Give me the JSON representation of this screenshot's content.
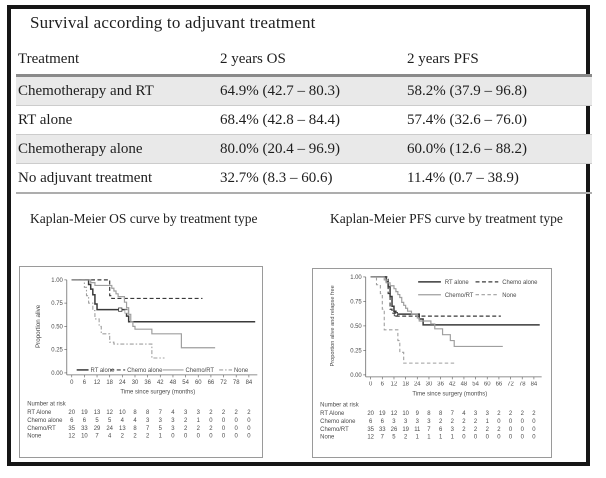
{
  "table": {
    "title": "Survival according to adjuvant treatment",
    "columns": [
      "Treatment",
      "2 years OS",
      "2 years PFS"
    ],
    "rows": [
      {
        "cells": [
          "Chemotherapy and RT",
          "64.9% (42.7 – 80.3)",
          "58.2% (37.9 – 96.8)"
        ],
        "shaded": true
      },
      {
        "cells": [
          "RT alone",
          "68.4% (42.8 – 84.4)",
          "57.4% (32.6 – 76.0)"
        ],
        "shaded": false
      },
      {
        "cells": [
          "Chemotherapy alone",
          "80.0% (20.4 – 96.9)",
          "60.0% (12.6 – 88.2)"
        ],
        "shaded": true
      },
      {
        "cells": [
          "No adjuvant treatment",
          "32.7% (8.3 – 60.6)",
          "11.4% (0.7 – 38.9)"
        ],
        "shaded": false
      }
    ]
  },
  "figures": {
    "os_title": "Kaplan-Meier OS curve by treatment type",
    "pfs_title": "Kaplan-Meier PFS curve by treatment type"
  },
  "colors": {
    "curve_black": "#3a3a3a",
    "curve_gray": "#9f9f9f",
    "axis": "#6b6b6b",
    "chart_text": "#4a4a4a"
  },
  "chart_data": [
    {
      "type": "line",
      "subtype": "kaplan-meier-step",
      "title": "Kaplan-Meier OS curve by treatment type",
      "xlabel": "Time since surgery (months)",
      "ylabel": "Proportion alive",
      "xlim": [
        0,
        88
      ],
      "ylim": [
        0,
        1.0
      ],
      "xticks": [
        0,
        6,
        12,
        18,
        24,
        30,
        36,
        42,
        48,
        54,
        60,
        66,
        72,
        78,
        84
      ],
      "yticks": [
        "1.00",
        "0.75",
        "0.50",
        "0.25",
        "0.00"
      ],
      "grid": false,
      "legend_position": "bottom-inside",
      "series": [
        {
          "name": "RT alone",
          "color": "#3a3a3a",
          "dash": null,
          "width": 1.5,
          "steps": [
            [
              0,
              1
            ],
            [
              7,
              1
            ],
            [
              8,
              0.95
            ],
            [
              9,
              0.9
            ],
            [
              10,
              0.84
            ],
            [
              11,
              0.74
            ],
            [
              12,
              0.68
            ],
            [
              25,
              0.68
            ],
            [
              26,
              0.61
            ],
            [
              27,
              0.55
            ],
            [
              87,
              0.55
            ]
          ],
          "censors": [
            [
              23,
              0.68
            ]
          ]
        },
        {
          "name": "Chemo alone",
          "color": "#3a3a3a",
          "dash": "4,2.5",
          "width": 1.2,
          "steps": [
            [
              0,
              1
            ],
            [
              17,
              1
            ],
            [
              18,
              0.83
            ],
            [
              19,
              0.8
            ],
            [
              62,
              0.8
            ]
          ],
          "censors": []
        },
        {
          "name": "Chemo/RT",
          "color": "#9f9f9f",
          "dash": null,
          "width": 1.2,
          "steps": [
            [
              0,
              1
            ],
            [
              8,
              1
            ],
            [
              9,
              0.97
            ],
            [
              11,
              0.94
            ],
            [
              18,
              0.94
            ],
            [
              19,
              0.91
            ],
            [
              20,
              0.88
            ],
            [
              21,
              0.85
            ],
            [
              22,
              0.82
            ],
            [
              24,
              0.82
            ],
            [
              25,
              0.76
            ],
            [
              26,
              0.7
            ],
            [
              27,
              0.63
            ],
            [
              28,
              0.55
            ],
            [
              29,
              0.5
            ],
            [
              30,
              0.47
            ],
            [
              37,
              0.47
            ],
            [
              38,
              0.42
            ],
            [
              51,
              0.42
            ],
            [
              52,
              0.27
            ],
            [
              68,
              0.27
            ]
          ],
          "censors": [
            [
              26,
              0.66
            ]
          ]
        },
        {
          "name": "None",
          "color": "#9f9f9f",
          "dash": "4,2,1.5,2",
          "width": 1.1,
          "steps": [
            [
              0,
              1
            ],
            [
              5,
              1
            ],
            [
              6,
              0.92
            ],
            [
              7,
              0.83
            ],
            [
              8,
              0.75
            ],
            [
              10,
              0.67
            ],
            [
              11,
              0.58
            ],
            [
              13,
              0.5
            ],
            [
              14,
              0.42
            ],
            [
              18,
              0.33
            ],
            [
              20,
              0.31
            ],
            [
              37,
              0.31
            ],
            [
              38,
              0.16
            ],
            [
              44,
              0.16
            ]
          ],
          "censors": []
        }
      ],
      "number_at_risk": {
        "label": "Number at risk",
        "rows": [
          {
            "name": "RT Alone",
            "values": [
              20,
              19,
              13,
              12,
              10,
              8,
              8,
              7,
              4,
              3,
              3,
              2,
              2,
              2,
              2
            ]
          },
          {
            "name": "Chemo alone",
            "values": [
              6,
              6,
              5,
              5,
              4,
              4,
              3,
              3,
              3,
              2,
              1,
              0,
              0,
              0,
              0
            ]
          },
          {
            "name": "Chemo/RT",
            "values": [
              35,
              33,
              29,
              24,
              13,
              8,
              7,
              5,
              3,
              2,
              2,
              2,
              0,
              0,
              0
            ]
          },
          {
            "name": "None",
            "values": [
              12,
              10,
              7,
              4,
              2,
              2,
              2,
              1,
              0,
              0,
              0,
              0,
              0,
              0,
              0
            ]
          }
        ]
      }
    },
    {
      "type": "line",
      "subtype": "kaplan-meier-step",
      "title": "Kaplan-Meier PFS curve by treatment type",
      "xlabel": "Time since surgery (months)",
      "ylabel": "Proportion alive and relapse free",
      "xlim": [
        0,
        88
      ],
      "ylim": [
        0,
        1.0
      ],
      "xticks": [
        0,
        6,
        12,
        18,
        24,
        30,
        36,
        42,
        48,
        54,
        60,
        66,
        72,
        78,
        84
      ],
      "yticks": [
        "1.00",
        "0.75",
        "0.50",
        "0.25",
        "0.00"
      ],
      "grid": false,
      "legend_position": "top-right-inside",
      "series": [
        {
          "name": "RT alone",
          "color": "#3a3a3a",
          "dash": null,
          "width": 1.5,
          "steps": [
            [
              0,
              1
            ],
            [
              7,
              1
            ],
            [
              8,
              0.95
            ],
            [
              9,
              0.9
            ],
            [
              10,
              0.8
            ],
            [
              11,
              0.7
            ],
            [
              12,
              0.65
            ],
            [
              13,
              0.62
            ],
            [
              24,
              0.62
            ],
            [
              25,
              0.57
            ],
            [
              27,
              0.51
            ],
            [
              87,
              0.51
            ]
          ],
          "censors": [
            [
              13,
              0.62
            ]
          ]
        },
        {
          "name": "Chemo alone",
          "color": "#3a3a3a",
          "dash": "4,2.5",
          "width": 1.2,
          "steps": [
            [
              0,
              1
            ],
            [
              8,
              1
            ],
            [
              9,
              0.83
            ],
            [
              10,
              0.67
            ],
            [
              11,
              0.63
            ],
            [
              13,
              0.6
            ],
            [
              67,
              0.6
            ]
          ],
          "censors": []
        },
        {
          "name": "Chemo/RT",
          "color": "#9f9f9f",
          "dash": null,
          "width": 1.2,
          "steps": [
            [
              0,
              1
            ],
            [
              6,
              1
            ],
            [
              7,
              0.97
            ],
            [
              8,
              0.94
            ],
            [
              10,
              0.91
            ],
            [
              12,
              0.88
            ],
            [
              13,
              0.85
            ],
            [
              14,
              0.82
            ],
            [
              15,
              0.79
            ],
            [
              16,
              0.74
            ],
            [
              17,
              0.71
            ],
            [
              18,
              0.68
            ],
            [
              19,
              0.65
            ],
            [
              21,
              0.62
            ],
            [
              24,
              0.58
            ],
            [
              25,
              0.55
            ],
            [
              30,
              0.55
            ],
            [
              31,
              0.52
            ],
            [
              33,
              0.47
            ],
            [
              37,
              0.41
            ],
            [
              41,
              0.35
            ],
            [
              43,
              0.29
            ],
            [
              68,
              0.29
            ]
          ],
          "censors": []
        },
        {
          "name": "None",
          "color": "#9f9f9f",
          "dash": "3.5,2.5",
          "width": 1.1,
          "steps": [
            [
              0,
              1
            ],
            [
              3,
              0.92
            ],
            [
              5,
              0.83
            ],
            [
              6,
              0.67
            ],
            [
              7,
              0.46
            ],
            [
              13,
              0.46
            ],
            [
              14,
              0.35
            ],
            [
              15,
              0.23
            ],
            [
              17,
              0.12
            ],
            [
              44,
              0.12
            ]
          ],
          "censors": []
        }
      ],
      "number_at_risk": {
        "label": "Number at risk",
        "rows": [
          {
            "name": "RT Alone",
            "values": [
              20,
              19,
              12,
              10,
              9,
              8,
              8,
              7,
              4,
              3,
              3,
              2,
              2,
              2,
              2
            ]
          },
          {
            "name": "Chemo alone",
            "values": [
              6,
              6,
              3,
              3,
              3,
              3,
              2,
              2,
              2,
              2,
              1,
              0,
              0,
              0,
              0
            ]
          },
          {
            "name": "Chemo/RT",
            "values": [
              35,
              33,
              26,
              19,
              11,
              7,
              6,
              3,
              2,
              2,
              2,
              2,
              0,
              0,
              0
            ]
          },
          {
            "name": "None",
            "values": [
              12,
              7,
              5,
              2,
              1,
              1,
              1,
              1,
              0,
              0,
              0,
              0,
              0,
              0,
              0
            ]
          }
        ]
      }
    }
  ]
}
